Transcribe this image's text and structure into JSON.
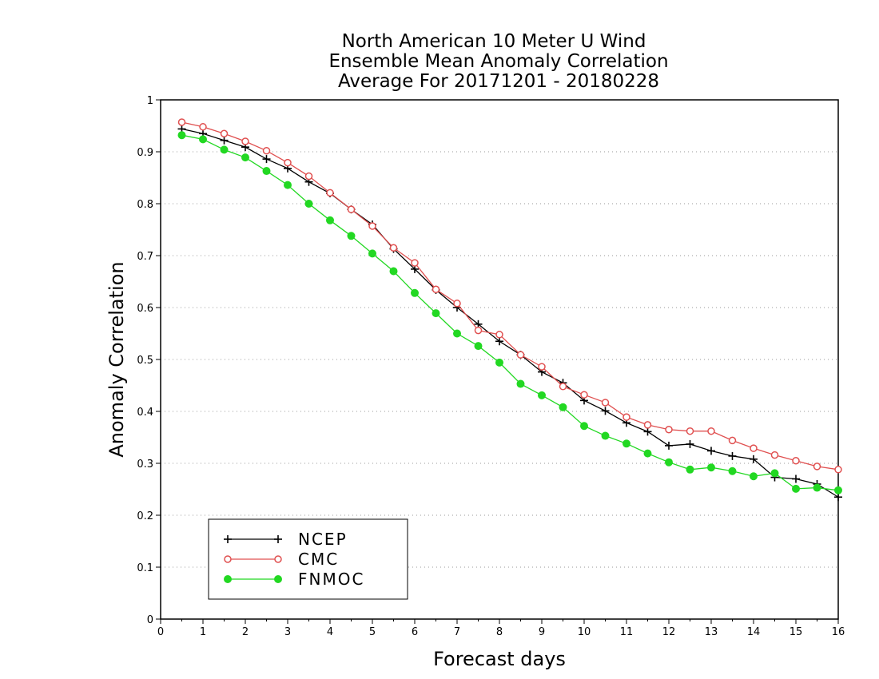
{
  "chart_data": {
    "type": "line",
    "title_lines": [
      "North American 10 Meter U Wind",
      "Ensemble Mean Anomaly Correlation",
      "Average For 20171201 - 20180228"
    ],
    "xlabel": "Forecast days",
    "ylabel": "Anomaly Correlation",
    "xlim": [
      0,
      16
    ],
    "ylim": [
      0,
      1
    ],
    "x_ticks": [
      "0",
      "1",
      "2",
      "3",
      "4",
      "5",
      "6",
      "7",
      "8",
      "9",
      "10",
      "11",
      "12",
      "13",
      "14",
      "15",
      "16"
    ],
    "y_ticks": [
      "0",
      "0.1",
      "0.2",
      "0.3",
      "0.4",
      "0.5",
      "0.6",
      "0.7",
      "0.8",
      "0.9",
      "1"
    ],
    "grid": "horizontal dotted",
    "legend": "bottom-left",
    "x": [
      0.5,
      1,
      1.5,
      2,
      2.5,
      3,
      3.5,
      4,
      4.5,
      5,
      5.5,
      6,
      6.5,
      7,
      7.5,
      8,
      8.5,
      9,
      9.5,
      10,
      10.5,
      11,
      11.5,
      12,
      12.5,
      13,
      13.5,
      14,
      14.5,
      15,
      15.5,
      16
    ],
    "series": [
      {
        "name": "NCEP",
        "color": "#000000",
        "marker": "plus",
        "values": [
          0.944,
          0.935,
          0.922,
          0.909,
          0.886,
          0.868,
          0.842,
          0.82,
          0.789,
          0.76,
          0.713,
          0.674,
          0.634,
          0.6,
          0.568,
          0.535,
          0.509,
          0.476,
          0.455,
          0.421,
          0.401,
          0.378,
          0.361,
          0.334,
          0.337,
          0.324,
          0.314,
          0.308,
          0.273,
          0.27,
          0.26,
          0.235
        ]
      },
      {
        "name": "CMC",
        "color": "#e05050",
        "marker": "open-circle",
        "values": [
          0.957,
          0.948,
          0.935,
          0.92,
          0.902,
          0.879,
          0.853,
          0.821,
          0.789,
          0.757,
          0.715,
          0.686,
          0.635,
          0.608,
          0.556,
          0.548,
          0.509,
          0.486,
          0.448,
          0.432,
          0.417,
          0.389,
          0.374,
          0.365,
          0.362,
          0.362,
          0.344,
          0.329,
          0.316,
          0.305,
          0.294,
          0.288
        ]
      },
      {
        "name": "FNMOC",
        "color": "#22d822",
        "marker": "filled-circle",
        "values": [
          0.932,
          0.924,
          0.904,
          0.889,
          0.863,
          0.836,
          0.8,
          0.768,
          0.738,
          0.704,
          0.67,
          0.628,
          0.589,
          0.55,
          0.526,
          0.494,
          0.453,
          0.431,
          0.408,
          0.372,
          0.353,
          0.338,
          0.319,
          0.302,
          0.288,
          0.292,
          0.285,
          0.275,
          0.281,
          0.251,
          0.253,
          0.248
        ]
      }
    ]
  }
}
